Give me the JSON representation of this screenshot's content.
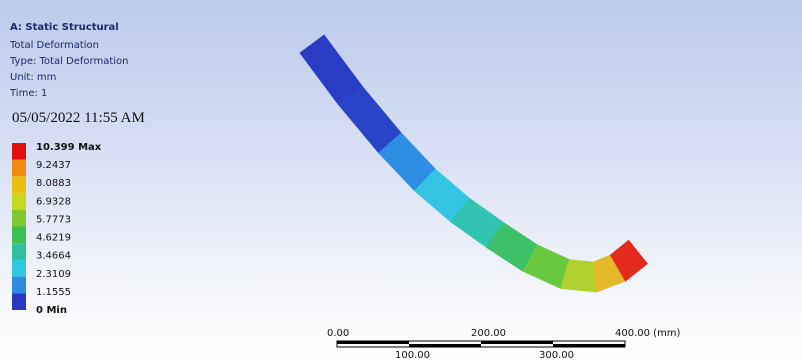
{
  "header": {
    "title": "A: Static Structural",
    "lines": [
      "Total Deformation",
      "Type: Total Deformation",
      "Unit: mm",
      "Time: 1"
    ],
    "date": "05/05/2022 11:55 AM"
  },
  "legend": {
    "entries": [
      {
        "label": "10.399 Max",
        "color": "#e01010"
      },
      {
        "label": "9.2437",
        "color": "#f08a10"
      },
      {
        "label": "8.0883",
        "color": "#e8c010"
      },
      {
        "label": "6.9328",
        "color": "#c8d820"
      },
      {
        "label": "5.7773",
        "color": "#80c830"
      },
      {
        "label": "4.6219",
        "color": "#3cc050"
      },
      {
        "label": "3.4664",
        "color": "#30c0a0"
      },
      {
        "label": "2.3109",
        "color": "#30c8e0"
      },
      {
        "label": "1.1555",
        "color": "#2c8ce0"
      },
      {
        "label": "0 Min",
        "color": "#2838c0"
      }
    ]
  },
  "scale_bar": {
    "top_labels": [
      "0.00",
      "200.00",
      "400.00 (mm)"
    ],
    "bottom_labels": [
      "100.00",
      "300.00"
    ]
  }
}
